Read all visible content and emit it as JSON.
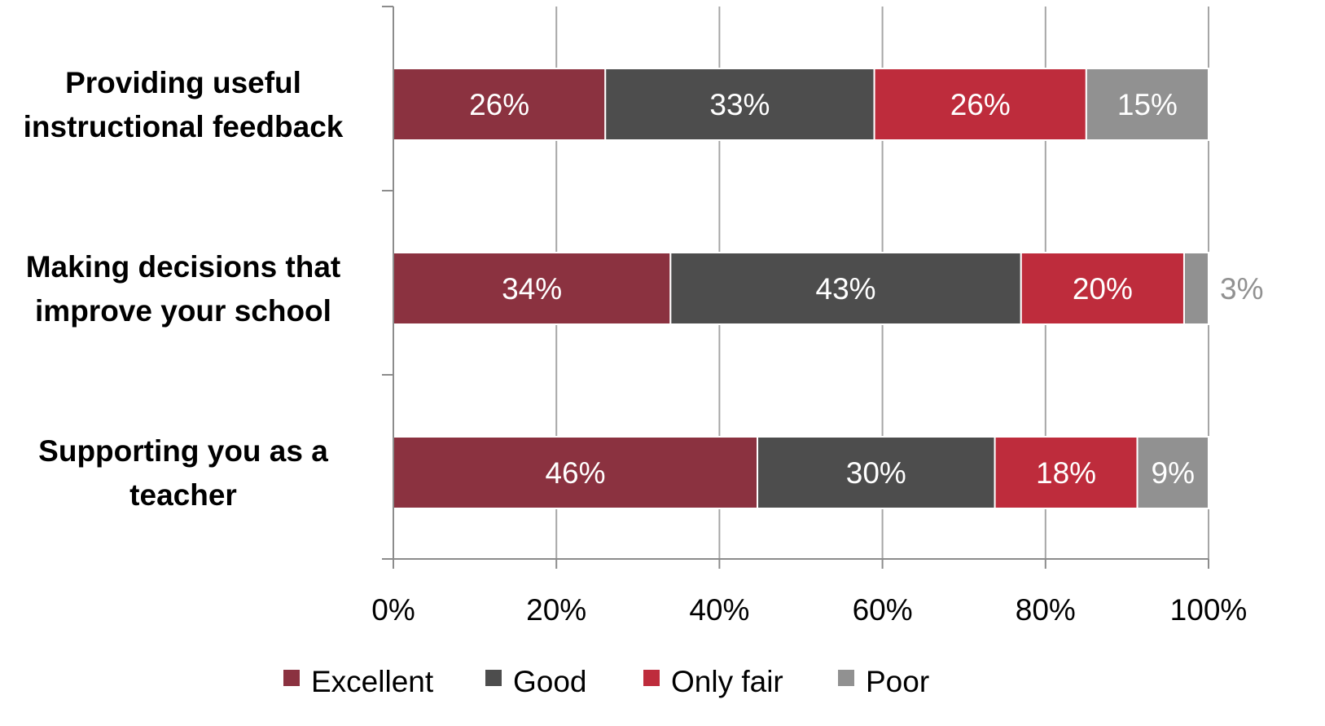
{
  "chart_data": {
    "type": "bar",
    "orientation": "horizontal",
    "stacked": true,
    "categories": [
      [
        "Providing useful",
        "instructional feedback"
      ],
      [
        "Making decisions that",
        "improve your school"
      ],
      [
        "Supporting you as a",
        "teacher"
      ]
    ],
    "series": [
      {
        "name": "Excellent",
        "color": "#8b3240",
        "values": [
          26,
          34,
          46
        ],
        "labels": [
          "26%",
          "34%",
          "46%"
        ]
      },
      {
        "name": "Good",
        "color": "#4d4d4d",
        "values": [
          33,
          43,
          30
        ],
        "labels": [
          "33%",
          "43%",
          "30%"
        ]
      },
      {
        "name": "Only fair",
        "color": "#be2c3c",
        "values": [
          26,
          20,
          18
        ],
        "labels": [
          "26%",
          "20%",
          "18%"
        ]
      },
      {
        "name": "Poor",
        "color": "#919191",
        "values": [
          15,
          3,
          9
        ],
        "labels": [
          "15%",
          "3%",
          "9%"
        ]
      }
    ],
    "xlim": [
      0,
      100
    ],
    "xticks": [
      0,
      20,
      40,
      60,
      80,
      100
    ],
    "xtick_labels": [
      "0%",
      "20%",
      "40%",
      "60%",
      "80%",
      "100%"
    ],
    "grid": true,
    "legend_position": "bottom",
    "label_color_inside": "#ffffff",
    "label_color_outside": "#919191"
  }
}
